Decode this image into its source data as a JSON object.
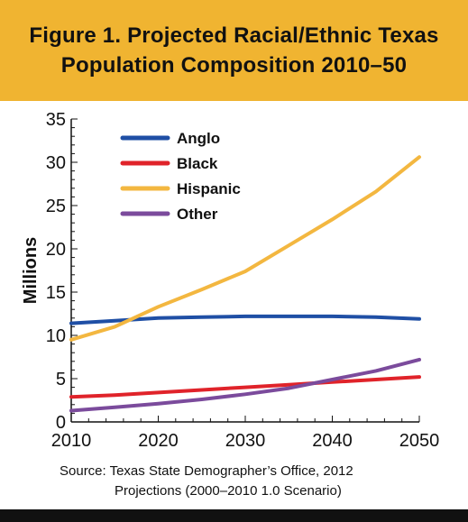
{
  "figure": {
    "title_line1": "Figure 1. Projected Racial/Ethnic Texas",
    "title_line2": "Population Composition 2010–50",
    "source_line1": "Source: Texas State Demographer’s Office, 2012",
    "source_line2": "Projections (2000–2010 1.0 Scenario)"
  },
  "colors": {
    "header_bg": "#f0b431",
    "bottom_bar": "#111111",
    "Anglo": "#1f4fa5",
    "Black": "#e0232a",
    "Hispanic": "#f3b740",
    "Other": "#7b4b9c"
  },
  "chart_data": {
    "type": "line",
    "title": "Figure 1. Projected Racial/Ethnic Texas Population Composition 2010–50",
    "xlabel": "",
    "ylabel": "Millions",
    "xlim": [
      2010,
      2050
    ],
    "ylim": [
      0,
      35
    ],
    "x_ticks": [
      2010,
      2020,
      2030,
      2040,
      2050
    ],
    "y_ticks": [
      0,
      5,
      10,
      15,
      20,
      25,
      30,
      35
    ],
    "grid": false,
    "legend_position": "top-left",
    "x": [
      2010,
      2015,
      2020,
      2025,
      2030,
      2035,
      2040,
      2045,
      2050
    ],
    "series": [
      {
        "name": "Anglo",
        "values": [
          11.4,
          11.7,
          12.0,
          12.1,
          12.2,
          12.2,
          12.2,
          12.1,
          11.9
        ]
      },
      {
        "name": "Black",
        "values": [
          2.9,
          3.1,
          3.4,
          3.7,
          4.0,
          4.3,
          4.6,
          4.9,
          5.2
        ]
      },
      {
        "name": "Hispanic",
        "values": [
          9.5,
          11.0,
          13.3,
          15.3,
          17.4,
          20.4,
          23.4,
          26.6,
          30.6
        ]
      },
      {
        "name": "Other",
        "values": [
          1.3,
          1.7,
          2.1,
          2.6,
          3.2,
          3.9,
          4.9,
          5.9,
          7.2
        ]
      }
    ]
  }
}
